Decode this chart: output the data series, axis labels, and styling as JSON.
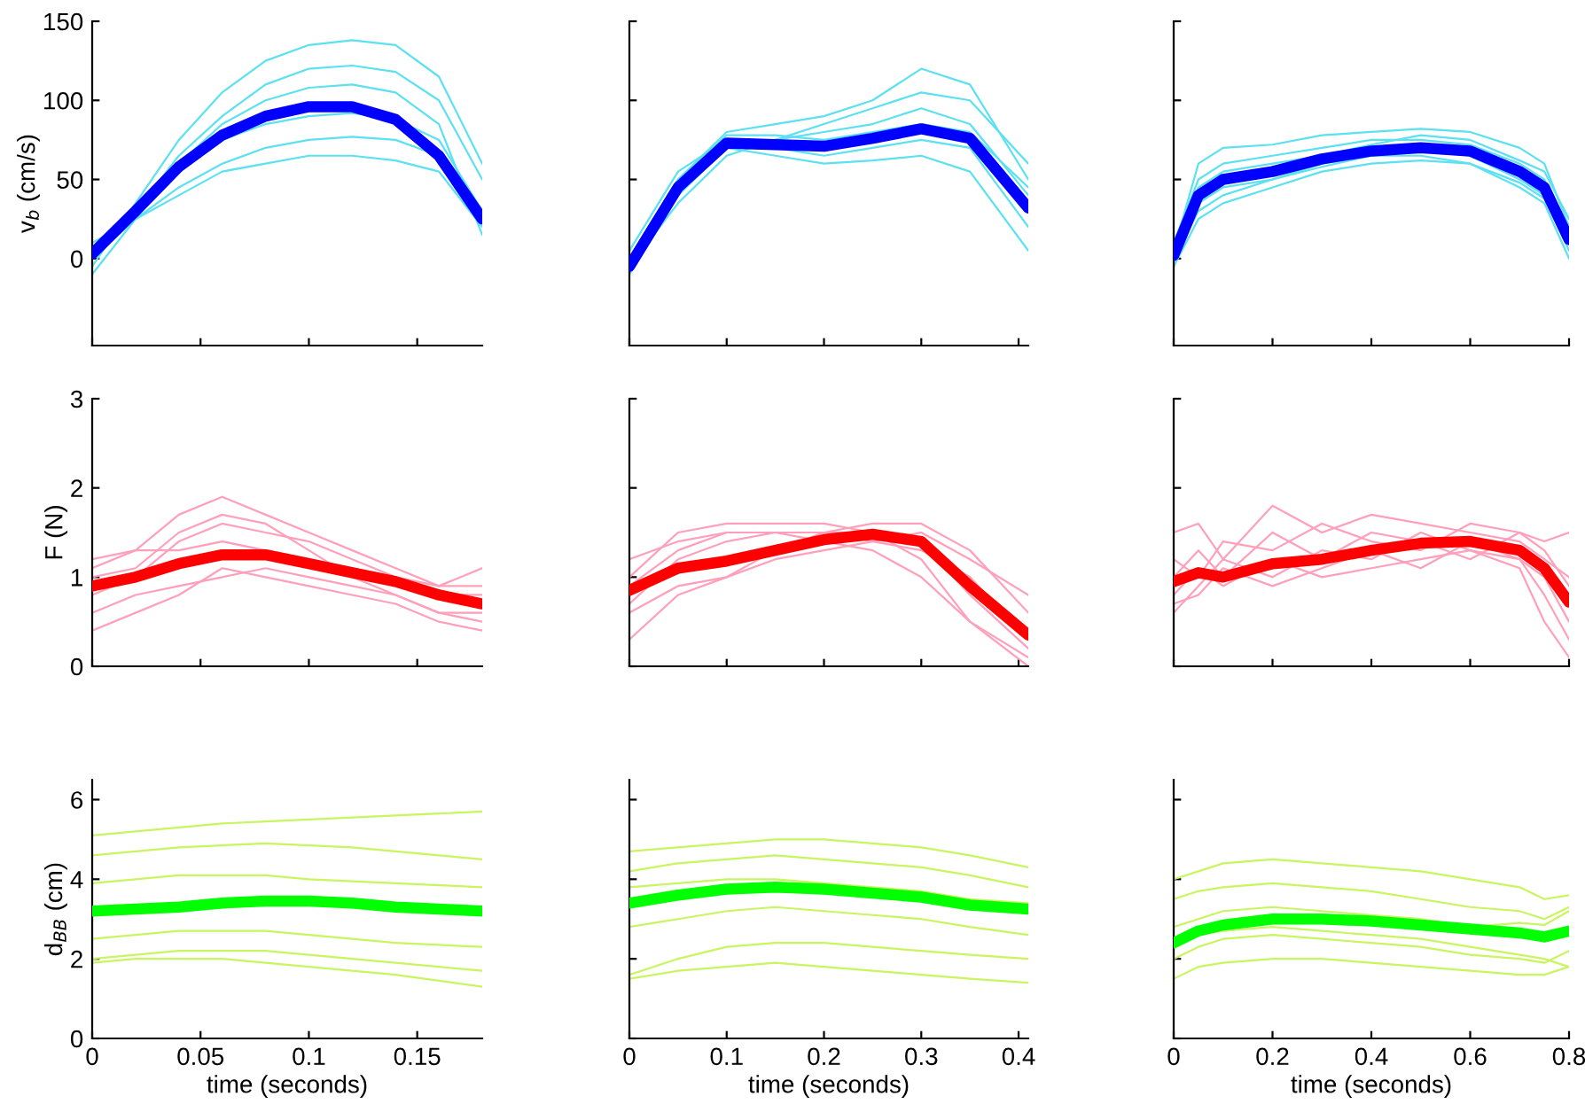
{
  "chart_data": [
    {
      "type": "line",
      "ylabel": "v$_{b}$ (cm/s)",
      "x": [
        0,
        0.02,
        0.04,
        0.06,
        0.08,
        0.1,
        0.12,
        0.14,
        0.16,
        0.18
      ],
      "xlim": [
        0,
        0.18
      ],
      "xticks": [
        0,
        0.05,
        0.1,
        0.15
      ],
      "ylim": [
        -55,
        150
      ],
      "yticks": [
        0,
        50,
        100,
        150
      ],
      "tick_labels": "y",
      "grid": false,
      "series": [
        {
          "color": "#5ce1f0",
          "values": [
            -5,
            35,
            75,
            105,
            125,
            135,
            138,
            135,
            115,
            60
          ]
        },
        {
          "color": "#5ce1f0",
          "values": [
            0,
            30,
            65,
            90,
            110,
            120,
            122,
            118,
            100,
            50
          ]
        },
        {
          "color": "#5ce1f0",
          "values": [
            5,
            30,
            55,
            75,
            85,
            90,
            92,
            88,
            75,
            30
          ]
        },
        {
          "color": "#5ce1f0",
          "values": [
            0,
            25,
            45,
            60,
            70,
            75,
            77,
            75,
            65,
            25
          ]
        },
        {
          "color": "#5ce1f0",
          "values": [
            10,
            25,
            40,
            55,
            60,
            65,
            65,
            62,
            55,
            20
          ]
        },
        {
          "color": "#5ce1f0",
          "values": [
            -10,
            25,
            60,
            85,
            100,
            108,
            110,
            105,
            85,
            15
          ]
        },
        {
          "color": "#0000ff",
          "values": [
            3,
            30,
            58,
            78,
            90,
            96,
            96,
            88,
            65,
            25
          ]
        }
      ]
    },
    {
      "type": "line",
      "x": [
        0,
        0.05,
        0.1,
        0.15,
        0.2,
        0.25,
        0.3,
        0.35,
        0.41
      ],
      "xlim": [
        0,
        0.41
      ],
      "xticks": [
        0,
        0.1,
        0.2,
        0.3,
        0.4
      ],
      "ylim": [
        -55,
        150
      ],
      "yticks": [
        0,
        50,
        100,
        150
      ],
      "tick_labels": false,
      "grid": false,
      "series": [
        {
          "color": "#5ce1f0",
          "values": [
            0,
            50,
            80,
            85,
            90,
            100,
            120,
            110,
            50
          ]
        },
        {
          "color": "#5ce1f0",
          "values": [
            -10,
            40,
            70,
            75,
            80,
            85,
            95,
            85,
            40
          ]
        },
        {
          "color": "#5ce1f0",
          "values": [
            5,
            55,
            75,
            70,
            65,
            70,
            75,
            70,
            20
          ]
        },
        {
          "color": "#5ce1f0",
          "values": [
            0,
            45,
            70,
            65,
            60,
            62,
            65,
            55,
            5
          ]
        },
        {
          "color": "#5ce1f0",
          "values": [
            -5,
            35,
            65,
            75,
            85,
            95,
            105,
            100,
            60
          ]
        },
        {
          "color": "#5ce1f0",
          "values": [
            0,
            50,
            78,
            78,
            75,
            80,
            85,
            80,
            45
          ]
        },
        {
          "color": "#0000ff",
          "values": [
            -5,
            45,
            73,
            72,
            71,
            76,
            82,
            76,
            32
          ]
        }
      ]
    },
    {
      "type": "line",
      "x": [
        0,
        0.05,
        0.1,
        0.2,
        0.3,
        0.4,
        0.5,
        0.6,
        0.7,
        0.75,
        0.8
      ],
      "xlim": [
        0,
        0.8
      ],
      "xticks": [
        0,
        0.2,
        0.4,
        0.6,
        0.8
      ],
      "ylim": [
        -55,
        150
      ],
      "yticks": [
        0,
        50,
        100,
        150
      ],
      "tick_labels": false,
      "grid": false,
      "series": [
        {
          "color": "#5ce1f0",
          "values": [
            5,
            60,
            70,
            72,
            78,
            80,
            82,
            80,
            70,
            60,
            20
          ]
        },
        {
          "color": "#5ce1f0",
          "values": [
            0,
            35,
            45,
            50,
            60,
            65,
            68,
            65,
            50,
            40,
            5
          ]
        },
        {
          "color": "#5ce1f0",
          "values": [
            10,
            50,
            60,
            65,
            70,
            75,
            75,
            72,
            60,
            50,
            15
          ]
        },
        {
          "color": "#5ce1f0",
          "values": [
            -5,
            25,
            35,
            45,
            55,
            60,
            62,
            60,
            45,
            35,
            0
          ]
        },
        {
          "color": "#5ce1f0",
          "values": [
            5,
            45,
            55,
            60,
            65,
            72,
            78,
            75,
            62,
            55,
            25
          ]
        },
        {
          "color": "#5ce1f0",
          "values": [
            0,
            30,
            40,
            50,
            58,
            65,
            65,
            60,
            48,
            38,
            10
          ]
        },
        {
          "color": "#0000ff",
          "values": [
            2,
            40,
            50,
            55,
            63,
            68,
            70,
            68,
            55,
            45,
            12
          ]
        }
      ]
    },
    {
      "type": "line",
      "ylabel": "F (N)",
      "x": [
        0,
        0.02,
        0.04,
        0.06,
        0.08,
        0.1,
        0.12,
        0.14,
        0.16,
        0.18
      ],
      "xlim": [
        0,
        0.18
      ],
      "xticks": [
        0,
        0.05,
        0.1,
        0.15
      ],
      "ylim": [
        0,
        3
      ],
      "yticks": [
        0,
        1,
        2,
        3
      ],
      "tick_labels": "y",
      "grid": false,
      "series": [
        {
          "color": "#ffa0bb",
          "values": [
            1.1,
            1.3,
            1.7,
            1.9,
            1.7,
            1.5,
            1.3,
            1.1,
            0.9,
            0.9
          ]
        },
        {
          "color": "#ffa0bb",
          "values": [
            0.8,
            1.0,
            1.4,
            1.6,
            1.5,
            1.4,
            1.2,
            1.0,
            0.8,
            0.8
          ]
        },
        {
          "color": "#ffa0bb",
          "values": [
            0.6,
            0.8,
            0.9,
            1.0,
            1.1,
            1.0,
            0.9,
            0.8,
            0.6,
            0.5
          ]
        },
        {
          "color": "#ffa0bb",
          "values": [
            1.2,
            1.3,
            1.3,
            1.4,
            1.3,
            1.2,
            1.1,
            1.0,
            0.9,
            1.1
          ]
        },
        {
          "color": "#ffa0bb",
          "values": [
            0.4,
            0.6,
            0.8,
            1.1,
            1.0,
            0.9,
            0.8,
            0.7,
            0.5,
            0.4
          ]
        },
        {
          "color": "#ffa0bb",
          "values": [
            1.0,
            1.1,
            1.5,
            1.7,
            1.6,
            1.3,
            1.0,
            0.8,
            0.6,
            0.6
          ]
        },
        {
          "color": "#ff0000",
          "values": [
            0.9,
            1.0,
            1.15,
            1.25,
            1.25,
            1.15,
            1.05,
            0.95,
            0.8,
            0.7
          ]
        }
      ]
    },
    {
      "type": "line",
      "x": [
        0,
        0.05,
        0.1,
        0.15,
        0.2,
        0.25,
        0.3,
        0.35,
        0.41
      ],
      "xlim": [
        0,
        0.41
      ],
      "xticks": [
        0,
        0.1,
        0.2,
        0.3,
        0.4
      ],
      "ylim": [
        0,
        3
      ],
      "yticks": [
        0,
        1,
        2,
        3
      ],
      "tick_labels": false,
      "grid": false,
      "series": [
        {
          "color": "#ffa0bb",
          "values": [
            1.0,
            1.5,
            1.6,
            1.6,
            1.6,
            1.5,
            1.4,
            0.8,
            0.2
          ]
        },
        {
          "color": "#ffa0bb",
          "values": [
            0.7,
            1.2,
            1.4,
            1.5,
            1.5,
            1.6,
            1.6,
            1.3,
            0.6
          ]
        },
        {
          "color": "#ffa0bb",
          "values": [
            0.3,
            0.8,
            1.0,
            1.3,
            1.5,
            1.5,
            1.2,
            0.5,
            0.0
          ]
        },
        {
          "color": "#ffa0bb",
          "values": [
            1.2,
            1.4,
            1.5,
            1.5,
            1.5,
            1.4,
            1.3,
            1.0,
            0.3
          ]
        },
        {
          "color": "#ffa0bb",
          "values": [
            0.6,
            0.9,
            1.0,
            1.2,
            1.3,
            1.4,
            1.5,
            1.2,
            0.8
          ]
        },
        {
          "color": "#ffa0bb",
          "values": [
            0.9,
            1.3,
            1.5,
            1.5,
            1.4,
            1.3,
            1.0,
            0.5,
            0.1
          ]
        },
        {
          "color": "#ff0000",
          "values": [
            0.85,
            1.1,
            1.18,
            1.3,
            1.42,
            1.48,
            1.4,
            0.9,
            0.35
          ]
        }
      ]
    },
    {
      "type": "line",
      "x": [
        0,
        0.05,
        0.1,
        0.2,
        0.3,
        0.4,
        0.5,
        0.6,
        0.7,
        0.75,
        0.8
      ],
      "xlim": [
        0,
        0.8
      ],
      "xticks": [
        0,
        0.2,
        0.4,
        0.6,
        0.8
      ],
      "ylim": [
        0,
        3
      ],
      "yticks": [
        0,
        1,
        2,
        3
      ],
      "tick_labels": false,
      "grid": false,
      "series": [
        {
          "color": "#ffa0bb",
          "values": [
            1.5,
            1.6,
            1.2,
            1.8,
            1.5,
            1.7,
            1.6,
            1.5,
            1.4,
            1.2,
            1.0
          ]
        },
        {
          "color": "#ffa0bb",
          "values": [
            0.6,
            0.9,
            1.2,
            1.0,
            1.3,
            1.2,
            1.5,
            1.3,
            1.2,
            0.8,
            0.3
          ]
        },
        {
          "color": "#ffa0bb",
          "values": [
            1.2,
            1.0,
            1.4,
            1.3,
            1.6,
            1.4,
            1.3,
            1.6,
            1.5,
            1.4,
            1.5
          ]
        },
        {
          "color": "#ffa0bb",
          "values": [
            0.8,
            1.1,
            0.9,
            1.2,
            1.0,
            1.1,
            1.2,
            1.3,
            1.1,
            0.5,
            0.1
          ]
        },
        {
          "color": "#ffa0bb",
          "values": [
            1.0,
            1.3,
            1.0,
            1.5,
            1.2,
            1.5,
            1.4,
            1.2,
            1.5,
            1.3,
            0.9
          ]
        },
        {
          "color": "#ffa0bb",
          "values": [
            0.7,
            0.8,
            1.1,
            0.9,
            1.1,
            1.3,
            1.1,
            1.4,
            1.2,
            1.0,
            0.5
          ]
        },
        {
          "color": "#ff0000",
          "values": [
            0.95,
            1.05,
            1.0,
            1.15,
            1.2,
            1.3,
            1.38,
            1.4,
            1.3,
            1.1,
            0.72
          ]
        }
      ]
    },
    {
      "type": "line",
      "ylabel": "d$_{BB}$ (cm)",
      "xlabel": "time (seconds)",
      "x": [
        0,
        0.02,
        0.04,
        0.06,
        0.08,
        0.1,
        0.12,
        0.14,
        0.16,
        0.18
      ],
      "xlim": [
        0,
        0.18
      ],
      "xticks": [
        0,
        0.05,
        0.1,
        0.15
      ],
      "ylim": [
        0,
        6.5
      ],
      "yticks": [
        0,
        2,
        4,
        6
      ],
      "grid": false,
      "series": [
        {
          "color": "#c8f560",
          "values": [
            5.1,
            5.2,
            5.3,
            5.4,
            5.45,
            5.5,
            5.55,
            5.6,
            5.65,
            5.7
          ]
        },
        {
          "color": "#c8f560",
          "values": [
            4.6,
            4.7,
            4.8,
            4.85,
            4.9,
            4.85,
            4.8,
            4.7,
            4.6,
            4.5
          ]
        },
        {
          "color": "#c8f560",
          "values": [
            3.9,
            4.0,
            4.1,
            4.1,
            4.1,
            4.0,
            3.95,
            3.9,
            3.85,
            3.8
          ]
        },
        {
          "color": "#c8f560",
          "values": [
            2.5,
            2.6,
            2.7,
            2.7,
            2.7,
            2.6,
            2.5,
            2.4,
            2.35,
            2.3
          ]
        },
        {
          "color": "#c8f560",
          "values": [
            2.0,
            2.1,
            2.2,
            2.2,
            2.2,
            2.1,
            2.0,
            1.9,
            1.8,
            1.7
          ]
        },
        {
          "color": "#c8f560",
          "values": [
            1.9,
            2.0,
            2.0,
            2.0,
            1.9,
            1.8,
            1.7,
            1.6,
            1.45,
            1.3
          ]
        },
        {
          "color": "#00ff00",
          "values": [
            3.2,
            3.25,
            3.3,
            3.4,
            3.45,
            3.45,
            3.4,
            3.3,
            3.25,
            3.2
          ]
        }
      ]
    },
    {
      "type": "line",
      "xlabel": "time (seconds)",
      "x": [
        0,
        0.05,
        0.1,
        0.15,
        0.2,
        0.25,
        0.3,
        0.35,
        0.41
      ],
      "xlim": [
        0,
        0.41
      ],
      "xticks": [
        0,
        0.1,
        0.2,
        0.3,
        0.4
      ],
      "ylim": [
        0,
        6.5
      ],
      "yticks": [
        0,
        2,
        4,
        6
      ],
      "tick_labels": "x",
      "grid": false,
      "series": [
        {
          "color": "#c8f560",
          "values": [
            4.7,
            4.8,
            4.9,
            5.0,
            5.0,
            4.9,
            4.8,
            4.6,
            4.3
          ]
        },
        {
          "color": "#c8f560",
          "values": [
            4.2,
            4.4,
            4.5,
            4.6,
            4.5,
            4.4,
            4.3,
            4.1,
            3.8
          ]
        },
        {
          "color": "#c8f560",
          "values": [
            3.8,
            3.9,
            4.0,
            4.0,
            3.9,
            3.8,
            3.7,
            3.5,
            3.4
          ]
        },
        {
          "color": "#c8f560",
          "values": [
            2.8,
            3.0,
            3.2,
            3.3,
            3.2,
            3.1,
            3.0,
            2.8,
            2.6
          ]
        },
        {
          "color": "#c8f560",
          "values": [
            1.6,
            2.0,
            2.3,
            2.4,
            2.4,
            2.3,
            2.2,
            2.1,
            2.0
          ]
        },
        {
          "color": "#c8f560",
          "values": [
            1.5,
            1.7,
            1.8,
            1.9,
            1.8,
            1.7,
            1.6,
            1.5,
            1.4
          ]
        },
        {
          "color": "#00ff00",
          "values": [
            3.4,
            3.6,
            3.75,
            3.8,
            3.75,
            3.65,
            3.55,
            3.35,
            3.25
          ]
        }
      ]
    },
    {
      "type": "line",
      "xlabel": "time (seconds)",
      "x": [
        0,
        0.05,
        0.1,
        0.2,
        0.3,
        0.4,
        0.5,
        0.6,
        0.7,
        0.75,
        0.8
      ],
      "xlim": [
        0,
        0.8
      ],
      "xticks": [
        0,
        0.2,
        0.4,
        0.6,
        0.8
      ],
      "ylim": [
        0,
        6.5
      ],
      "yticks": [
        0,
        2,
        4,
        6
      ],
      "tick_labels": "x",
      "grid": false,
      "series": [
        {
          "color": "#c8f560",
          "values": [
            4.0,
            4.2,
            4.4,
            4.5,
            4.4,
            4.3,
            4.2,
            4.0,
            3.8,
            3.5,
            3.6
          ]
        },
        {
          "color": "#c8f560",
          "values": [
            3.5,
            3.7,
            3.8,
            3.9,
            3.8,
            3.7,
            3.5,
            3.3,
            3.2,
            3.0,
            3.3
          ]
        },
        {
          "color": "#c8f560",
          "values": [
            2.8,
            3.0,
            3.2,
            3.3,
            3.2,
            3.1,
            3.0,
            2.8,
            2.9,
            2.85,
            3.2
          ]
        },
        {
          "color": "#c8f560",
          "values": [
            2.0,
            2.3,
            2.5,
            2.6,
            2.5,
            2.4,
            2.3,
            2.1,
            2.0,
            1.9,
            2.2
          ]
        },
        {
          "color": "#c8f560",
          "values": [
            1.5,
            1.8,
            1.9,
            2.0,
            2.0,
            1.9,
            1.8,
            1.7,
            1.6,
            1.6,
            1.8
          ]
        },
        {
          "color": "#c8f560",
          "values": [
            2.3,
            2.6,
            2.7,
            2.8,
            2.7,
            2.6,
            2.5,
            2.3,
            2.1,
            2.0,
            1.8
          ]
        },
        {
          "color": "#00ff00",
          "values": [
            2.4,
            2.7,
            2.85,
            3.0,
            3.0,
            2.95,
            2.85,
            2.75,
            2.65,
            2.55,
            2.7
          ]
        }
      ]
    }
  ]
}
